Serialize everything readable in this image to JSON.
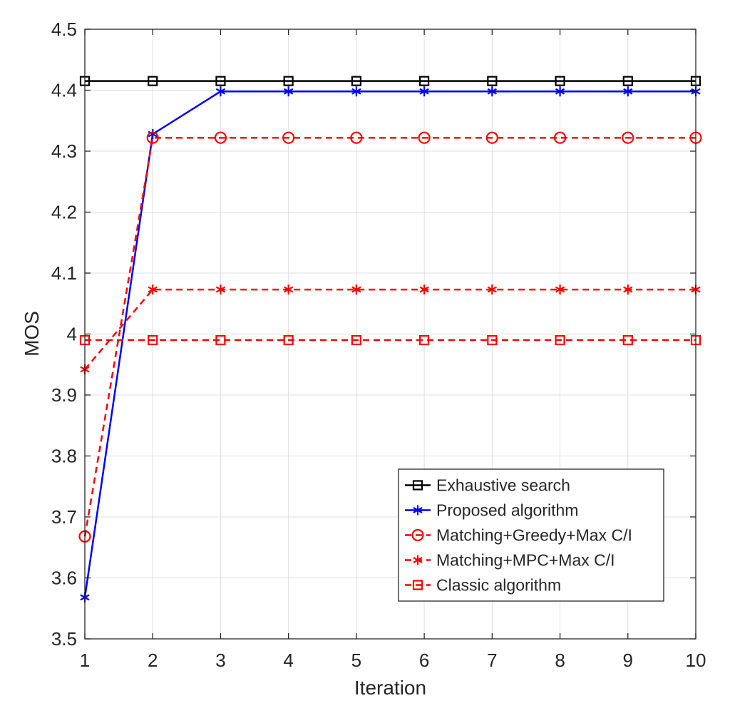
{
  "chart_data": {
    "type": "line",
    "title": "",
    "xlabel": "Iteration",
    "ylabel": "MOS",
    "x": [
      1,
      2,
      3,
      4,
      5,
      6,
      7,
      8,
      9,
      10
    ],
    "xlim": [
      1,
      10
    ],
    "ylim": [
      3.5,
      4.5
    ],
    "xticks": [
      "1",
      "2",
      "3",
      "4",
      "5",
      "6",
      "7",
      "8",
      "9",
      "10"
    ],
    "yticks": [
      "3.5",
      "3.6",
      "3.7",
      "3.8",
      "3.9",
      "4",
      "4.1",
      "4.2",
      "4.3",
      "4.4",
      "4.5"
    ],
    "grid": true,
    "legend_position": "bottom-right",
    "series": [
      {
        "name": "Exhaustive search",
        "color": "#000000",
        "line_style": "solid",
        "marker": "square",
        "values": [
          4.415,
          4.415,
          4.415,
          4.415,
          4.415,
          4.415,
          4.415,
          4.415,
          4.415,
          4.415
        ]
      },
      {
        "name": "Proposed algorithm",
        "color": "#0000ff",
        "line_style": "solid",
        "marker": "asterisk",
        "values": [
          3.568,
          4.328,
          4.398,
          4.398,
          4.398,
          4.398,
          4.398,
          4.398,
          4.398,
          4.398
        ]
      },
      {
        "name": "Matching+Greedy+Max C/I",
        "color": "#ff0000",
        "line_style": "dashed",
        "marker": "circle",
        "values": [
          3.668,
          4.322,
          4.322,
          4.322,
          4.322,
          4.322,
          4.322,
          4.322,
          4.322,
          4.322
        ]
      },
      {
        "name": "Matching+MPC+Max C/I",
        "color": "#ff0000",
        "line_style": "dashed",
        "marker": "asterisk",
        "values": [
          3.942,
          4.073,
          4.073,
          4.073,
          4.073,
          4.073,
          4.073,
          4.073,
          4.073,
          4.073
        ]
      },
      {
        "name": "Classic algorithm",
        "color": "#ff0000",
        "line_style": "dashed",
        "marker": "square",
        "values": [
          3.99,
          3.99,
          3.99,
          3.99,
          3.99,
          3.99,
          3.99,
          3.99,
          3.99,
          3.99
        ]
      }
    ]
  }
}
